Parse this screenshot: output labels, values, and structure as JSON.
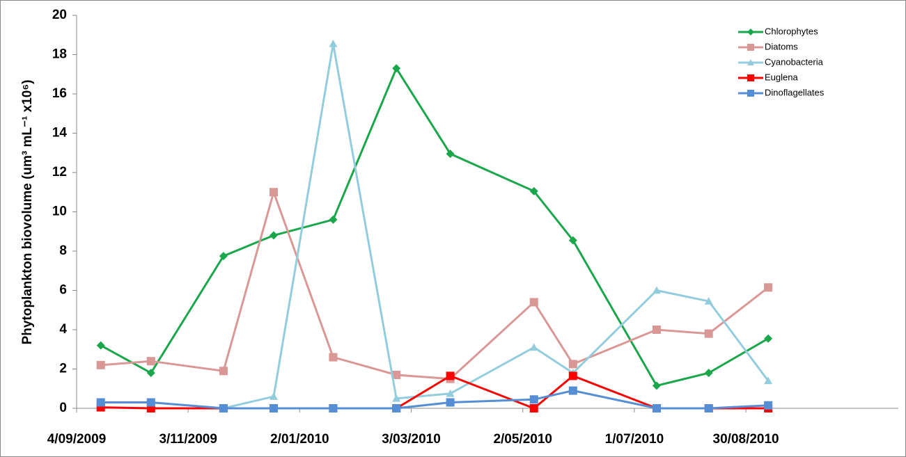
{
  "chart_data": {
    "type": "line",
    "ylabel": "Phytoplankton  biovolume (um³ mL⁻¹   x10⁶)",
    "x": [
      "2009-09-17",
      "2009-10-14",
      "2009-11-22",
      "2009-12-19",
      "2010-01-20",
      "2010-02-23",
      "2010-03-24",
      "2010-05-08",
      "2010-05-29",
      "2010-07-13",
      "2010-08-10",
      "2010-09-11"
    ],
    "xlim": [
      "2009-09-04",
      "2010-11-20"
    ],
    "xticks": [
      {
        "value": "2009-09-04",
        "label": "4/09/2009"
      },
      {
        "value": "2009-11-03",
        "label": "3/11/2009"
      },
      {
        "value": "2010-01-02",
        "label": "2/01/2010"
      },
      {
        "value": "2010-03-03",
        "label": "3/03/2010"
      },
      {
        "value": "2010-05-02",
        "label": "2/05/2010"
      },
      {
        "value": "2010-07-01",
        "label": "1/07/2010"
      },
      {
        "value": "2010-08-30",
        "label": "30/08/2010"
      }
    ],
    "ylim": [
      0,
      20
    ],
    "yticks": [
      0,
      2,
      4,
      6,
      8,
      10,
      12,
      14,
      16,
      18,
      20
    ],
    "grid": false,
    "legend": "upper right",
    "series": [
      {
        "name": "Chlorophytes",
        "color": "#1aa64a",
        "marker": "diamond",
        "values": [
          3.2,
          1.8,
          7.75,
          8.8,
          9.6,
          17.3,
          12.95,
          11.05,
          8.55,
          1.15,
          1.8,
          3.55
        ]
      },
      {
        "name": "Diatoms",
        "color": "#d99795",
        "marker": "square",
        "values": [
          2.2,
          2.4,
          1.9,
          11.0,
          2.6,
          1.7,
          1.5,
          5.4,
          2.25,
          4.0,
          3.8,
          6.15
        ]
      },
      {
        "name": "Cyanobacteria",
        "color": "#93cddd",
        "marker": "triangle",
        "values": [
          0.3,
          0.3,
          0,
          0.6,
          18.55,
          0.5,
          0.75,
          3.1,
          1.8,
          6.0,
          5.45,
          1.4
        ]
      },
      {
        "name": "Euglena",
        "color": "#ff0000",
        "marker": "square",
        "values": [
          0.05,
          0,
          0,
          0,
          0,
          0,
          1.65,
          0,
          1.65,
          0,
          0,
          0
        ]
      },
      {
        "name": "Dinoflagellates",
        "color": "#558ed5",
        "marker": "square",
        "values": [
          0.3,
          0.3,
          0,
          0,
          0,
          0,
          0.3,
          0.45,
          0.9,
          0,
          0,
          0.15
        ]
      }
    ]
  }
}
